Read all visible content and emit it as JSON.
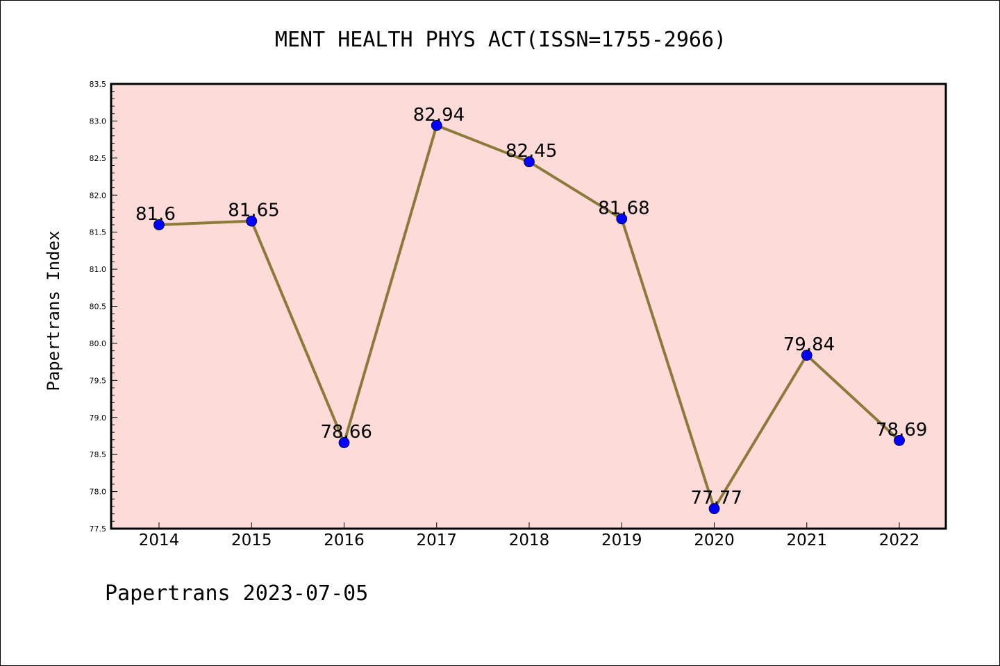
{
  "chart_data": {
    "type": "line",
    "title": "MENT HEALTH PHYS ACT(ISSN=1755-2966)",
    "xlabel": "",
    "ylabel": "Papertrans Index",
    "categories": [
      "2014",
      "2015",
      "2016",
      "2017",
      "2018",
      "2019",
      "2020",
      "2021",
      "2022"
    ],
    "series": [
      {
        "values": [
          81.6,
          81.65,
          78.66,
          82.94,
          82.45,
          81.68,
          77.77,
          79.84,
          78.69
        ],
        "data_labels": [
          "81.6",
          "81.65",
          "78.66",
          "82.94",
          "82.45",
          "81.68",
          "77.77",
          "79.84",
          "78.69"
        ],
        "line_color": "#8B7A3A",
        "marker_color": "#0000FF"
      }
    ],
    "ylim": [
      77.5,
      83.5
    ],
    "yticks": [
      "77.5",
      "78.0",
      "78.5",
      "79.0",
      "79.5",
      "80.0",
      "80.5",
      "81.0",
      "81.5",
      "82.0",
      "82.5",
      "83.0",
      "83.5"
    ],
    "plot_background": "#FDDBD9",
    "grid": false,
    "legend": "none"
  },
  "footer": "Papertrans 2023-07-05"
}
